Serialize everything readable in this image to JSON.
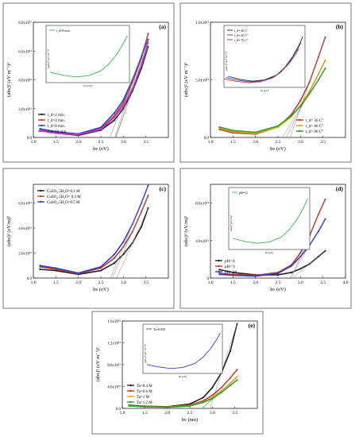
{
  "figure_panels": [
    {
      "id": "a",
      "panel_label": "(a)",
      "ylabel": "(αhν)² (eV m⁻¹)²",
      "xlabel": "hν (eV)",
      "xlim": [
        1.0,
        4.0
      ],
      "ylim": [
        0,
        8
      ],
      "x_ticks": [
        "1.0",
        "1.5",
        "2.0",
        "2.5",
        "3.0",
        "3.5"
      ],
      "y_ticks": [
        {
          "v": 8,
          "label": "8.0x10¹²"
        },
        {
          "v": 6,
          "label": "6.0x10¹²"
        },
        {
          "v": 4,
          "label": "4.0x10¹²"
        },
        {
          "v": 2,
          "label": "2.0x10¹²"
        },
        {
          "v": 0,
          "label": "0.0"
        }
      ],
      "legend": {
        "position": "bottom-left",
        "entries": [
          "t_d=2 min.",
          "t_d=4 min.",
          "t_d=8 min.",
          "t_d=10 min."
        ]
      },
      "inset": {
        "legend": "t_d=8 min.",
        "ylabel": "(αhν)² (eV m⁻¹)²",
        "xlabel": "hν (eV)"
      }
    },
    {
      "id": "b",
      "panel_label": "(b)",
      "ylabel": "(αhν)² (eV m⁻¹)²",
      "xlabel": "hν (eV)",
      "xlim": [
        1.0,
        4.0
      ],
      "ylim": [
        0,
        10
      ],
      "x_ticks": [
        "1.0",
        "1.5",
        "2.0",
        "2.5",
        "3.0",
        "3.5"
      ],
      "y_ticks": [
        {
          "v": 10,
          "label": "1.0x10¹³"
        },
        {
          "v": 5,
          "label": "5.0x10¹²"
        },
        {
          "v": 0,
          "label": "0.0"
        }
      ],
      "legend": {
        "position": "bottom-right",
        "entries": [
          "t_d= 50 C°",
          "t_d= 80 C°",
          "t_d= 90 C°"
        ]
      },
      "inset": {
        "legend_entries": [
          "t_d= 40 C°",
          "t_d= 60 C°",
          "t_d= 70 C°"
        ],
        "ylabel": "(αhν)² (eV m⁻¹)²",
        "xlabel": "hν (eV)"
      }
    },
    {
      "id": "c",
      "panel_label": "(c)",
      "ylabel": "(αhν)² (eV/m)²",
      "xlabel": "hν (eV)",
      "xlim": [
        1.0,
        4.0
      ],
      "ylim": [
        0,
        7.5
      ],
      "x_ticks": [
        "1.0",
        "1.5",
        "2.0",
        "2.5",
        "3.0",
        "3.5"
      ],
      "y_ticks": [
        {
          "v": 6,
          "label": "6.0x10¹²"
        },
        {
          "v": 4,
          "label": "4.0x10¹²"
        },
        {
          "v": 2,
          "label": "2.0x10¹²"
        },
        {
          "v": 0,
          "label": "0.0"
        }
      ],
      "legend": {
        "position": "top-left",
        "entries": [
          "CuSO₄.5H₂O=0.1 M",
          "CuSO₄.5H₂O= 0.3 M",
          "CuSO₄.5H₂O=0.5 M"
        ]
      }
    },
    {
      "id": "d",
      "panel_label": "(d)",
      "ylabel": "(αhν)² (eV/m)²",
      "xlabel": "hν (eV)",
      "xlim": [
        1.0,
        4.0
      ],
      "ylim": [
        0,
        10
      ],
      "x_ticks": [
        "1.0",
        "1.5",
        "2.0",
        "2.5",
        "3.0",
        "3.5",
        "4.0"
      ],
      "y_ticks": [
        {
          "v": 8,
          "label": "8.0x10¹²"
        },
        {
          "v": 4,
          "label": "4.0x10¹²"
        },
        {
          "v": 0,
          "label": "0"
        }
      ],
      "legend": {
        "position": "bottom-left",
        "entries": [
          "pH= 8",
          "pH= 9",
          "pH= 10"
        ]
      },
      "inset": {
        "legend": "pH=11",
        "ylabel": "(αhν)² (eV/m)²",
        "xlabel": "hν (eV)"
      }
    },
    {
      "id": "e",
      "panel_label": "(e)",
      "ylabel": "(αhν)² (eV m⁻¹)²",
      "xlabel": "hν (nm)",
      "xlim": [
        1.0,
        4.0
      ],
      "ylim": [
        0,
        16
      ],
      "x_ticks": [
        "1.0",
        "1.5",
        "2.0",
        "2.5",
        "3.0",
        "3.5"
      ],
      "y_ticks": [
        {
          "v": 16,
          "label": "1.6x10¹³"
        },
        {
          "v": 12,
          "label": "1.2x10¹³"
        },
        {
          "v": 8,
          "label": "8.0x10¹²"
        },
        {
          "v": 4,
          "label": "4.0x10¹²"
        },
        {
          "v": 0,
          "label": "0.0"
        }
      ],
      "legend": {
        "position": "bottom-left",
        "entries": [
          "Ta=0.4 M",
          "Ta=0.6 M",
          "Ta=1 M",
          "Ta=1.2 M"
        ]
      },
      "inset": {
        "legend": "Ta=0.8M",
        "ylabel": "(αhν)² (eV m⁻¹)²",
        "xlabel": "hν (eV)"
      }
    }
  ],
  "chart_data": [
    {
      "type": "line",
      "panel": "a",
      "xlabel": "hν (eV)",
      "ylabel": "(αhν)² (eV m⁻¹)²",
      "ylim": [
        0,
        8
      ],
      "unit_note": "values ×10¹²",
      "series": [
        {
          "name": "t_d=2 min.",
          "color": "#222222",
          "points": [
            [
              1.15,
              0.5
            ],
            [
              1.5,
              0.3
            ],
            [
              2.0,
              0.15
            ],
            [
              2.5,
              0.5
            ],
            [
              2.8,
              1.2
            ],
            [
              3.0,
              2.0
            ],
            [
              3.2,
              3.2
            ],
            [
              3.4,
              4.8
            ],
            [
              3.55,
              6.3
            ]
          ]
        },
        {
          "name": "t_d=4 min.",
          "color": "#c0392b",
          "points": [
            [
              1.15,
              0.5
            ],
            [
              1.5,
              0.35
            ],
            [
              2.0,
              0.2
            ],
            [
              2.5,
              0.6
            ],
            [
              2.8,
              1.5
            ],
            [
              3.0,
              2.4
            ],
            [
              3.2,
              3.8
            ],
            [
              3.4,
              5.5
            ],
            [
              3.55,
              7.2
            ]
          ]
        },
        {
          "name": "t_d=8 min.",
          "color": "#2e3fc7",
          "points": [
            [
              1.15,
              0.6
            ],
            [
              1.5,
              0.4
            ],
            [
              2.0,
              0.25
            ],
            [
              2.5,
              0.7
            ],
            [
              2.8,
              1.7
            ],
            [
              3.0,
              2.6
            ],
            [
              3.2,
              4.0
            ],
            [
              3.4,
              5.6
            ],
            [
              3.55,
              6.8
            ]
          ]
        },
        {
          "name": "t_d=10 min.",
          "color": "#cc33cc",
          "points": [
            [
              1.15,
              0.45
            ],
            [
              1.5,
              0.3
            ],
            [
              2.0,
              0.2
            ],
            [
              2.5,
              0.55
            ],
            [
              2.8,
              1.4
            ],
            [
              3.0,
              2.2
            ],
            [
              3.2,
              3.4
            ],
            [
              3.4,
              5.0
            ],
            [
              3.55,
              6.6
            ]
          ]
        }
      ]
    },
    {
      "type": "line",
      "panel": "b",
      "xlabel": "hν (eV)",
      "ylabel": "(αhν)² (eV m⁻¹)²",
      "ylim": [
        0,
        10
      ],
      "unit_note": "values ×10¹²",
      "series": [
        {
          "name": "t_d= 50 C°",
          "color": "#c0392b",
          "points": [
            [
              1.2,
              0.7
            ],
            [
              1.5,
              0.4
            ],
            [
              2.0,
              0.3
            ],
            [
              2.5,
              0.9
            ],
            [
              2.8,
              2.0
            ],
            [
              3.0,
              3.2
            ],
            [
              3.2,
              4.8
            ],
            [
              3.4,
              7.0
            ],
            [
              3.55,
              8.7
            ]
          ]
        },
        {
          "name": "t_d= 80 C°",
          "color": "#d4b106",
          "points": [
            [
              1.2,
              0.8
            ],
            [
              1.5,
              0.5
            ],
            [
              2.0,
              0.35
            ],
            [
              2.5,
              0.9
            ],
            [
              2.8,
              1.8
            ],
            [
              3.0,
              2.8
            ],
            [
              3.2,
              4.0
            ],
            [
              3.4,
              5.5
            ],
            [
              3.55,
              6.7
            ]
          ]
        },
        {
          "name": "t_d= 90 C°",
          "color": "#2ca02c",
          "points": [
            [
              1.2,
              0.9
            ],
            [
              1.5,
              0.6
            ],
            [
              2.0,
              0.45
            ],
            [
              2.5,
              1.0
            ],
            [
              2.8,
              1.9
            ],
            [
              3.0,
              2.7
            ],
            [
              3.2,
              3.8
            ],
            [
              3.4,
              5.0
            ],
            [
              3.55,
              6.0
            ]
          ]
        }
      ]
    },
    {
      "type": "line",
      "panel": "c",
      "xlabel": "hν (eV)",
      "ylabel": "(αhν)² (eV/m)²",
      "ylim": [
        0,
        7.5
      ],
      "unit_note": "values ×10¹²",
      "series": [
        {
          "name": "CuSO₄.5H₂O=0.1 M",
          "color": "#222222",
          "points": [
            [
              1.15,
              0.7
            ],
            [
              1.5,
              0.6
            ],
            [
              2.0,
              0.3
            ],
            [
              2.5,
              0.6
            ],
            [
              2.8,
              1.2
            ],
            [
              3.0,
              1.9
            ],
            [
              3.2,
              2.8
            ],
            [
              3.4,
              4.1
            ],
            [
              3.55,
              5.6
            ]
          ]
        },
        {
          "name": "CuSO₄.5H₂O= 0.3 M",
          "color": "#c0392b",
          "points": [
            [
              1.15,
              0.9
            ],
            [
              1.5,
              0.7
            ],
            [
              2.0,
              0.35
            ],
            [
              2.5,
              0.8
            ],
            [
              2.8,
              1.6
            ],
            [
              3.0,
              2.5
            ],
            [
              3.2,
              3.7
            ],
            [
              3.4,
              5.3
            ],
            [
              3.55,
              6.6
            ]
          ]
        },
        {
          "name": "CuSO₄.5H₂O=0.5 M",
          "color": "#2e3fc7",
          "points": [
            [
              1.15,
              1.0
            ],
            [
              1.5,
              0.8
            ],
            [
              2.0,
              0.4
            ],
            [
              2.5,
              0.9
            ],
            [
              2.8,
              1.9
            ],
            [
              3.0,
              2.9
            ],
            [
              3.2,
              4.3
            ],
            [
              3.4,
              6.0
            ],
            [
              3.55,
              7.4
            ]
          ]
        }
      ]
    },
    {
      "type": "line",
      "panel": "d",
      "xlabel": "hν (eV)",
      "ylabel": "(αhν)² (eV/m)²",
      "ylim": [
        0,
        10
      ],
      "unit_note": "values ×10¹²",
      "series": [
        {
          "name": "pH= 8",
          "color": "#222222",
          "points": [
            [
              1.2,
              0.9
            ],
            [
              1.5,
              0.6
            ],
            [
              2.0,
              0.35
            ],
            [
              2.5,
              0.35
            ],
            [
              2.8,
              0.6
            ],
            [
              3.0,
              1.0
            ],
            [
              3.2,
              1.5
            ],
            [
              3.4,
              2.3
            ],
            [
              3.55,
              2.9
            ]
          ]
        },
        {
          "name": "pH= 9",
          "color": "#c0392b",
          "points": [
            [
              1.2,
              0.5
            ],
            [
              1.5,
              0.4
            ],
            [
              2.0,
              0.3
            ],
            [
              2.5,
              0.6
            ],
            [
              2.8,
              1.4
            ],
            [
              3.0,
              2.7
            ],
            [
              3.2,
              4.5
            ],
            [
              3.4,
              6.8
            ],
            [
              3.55,
              8.4
            ]
          ]
        },
        {
          "name": "pH= 10",
          "color": "#2e3fc7",
          "points": [
            [
              1.2,
              0.4
            ],
            [
              1.5,
              0.3
            ],
            [
              2.0,
              0.2
            ],
            [
              2.5,
              0.5
            ],
            [
              2.8,
              1.3
            ],
            [
              3.0,
              2.3
            ],
            [
              3.2,
              3.5
            ],
            [
              3.4,
              5.0
            ],
            [
              3.55,
              6.3
            ]
          ]
        }
      ]
    },
    {
      "type": "line",
      "panel": "e",
      "xlabel": "hν (nm)",
      "ylabel": "(αhν)² (eV m⁻¹)²",
      "ylim": [
        0,
        16
      ],
      "unit_note": "values ×10¹²",
      "series": [
        {
          "name": "Ta=0.4 M",
          "color": "#222222",
          "points": [
            [
              1.15,
              0.6
            ],
            [
              1.5,
              0.4
            ],
            [
              2.0,
              0.3
            ],
            [
              2.5,
              0.8
            ],
            [
              2.8,
              2.0
            ],
            [
              3.0,
              3.8
            ],
            [
              3.2,
              6.5
            ],
            [
              3.4,
              10.5
            ],
            [
              3.55,
              15.5
            ]
          ]
        },
        {
          "name": "Ta=0.6 M",
          "color": "#c0392b",
          "points": [
            [
              1.15,
              0.5
            ],
            [
              1.5,
              0.35
            ],
            [
              2.0,
              0.25
            ],
            [
              2.5,
              0.6
            ],
            [
              2.8,
              1.4
            ],
            [
              3.0,
              2.4
            ],
            [
              3.2,
              3.8
            ],
            [
              3.4,
              5.6
            ],
            [
              3.55,
              7.1
            ]
          ]
        },
        {
          "name": "Ta=1 M",
          "color": "#d4b106",
          "points": [
            [
              1.15,
              0.5
            ],
            [
              1.5,
              0.3
            ],
            [
              2.0,
              0.25
            ],
            [
              2.5,
              0.5
            ],
            [
              2.8,
              1.2
            ],
            [
              3.0,
              2.0
            ],
            [
              3.2,
              3.2
            ],
            [
              3.4,
              4.6
            ],
            [
              3.55,
              5.8
            ]
          ]
        },
        {
          "name": "Ta=1.2 M",
          "color": "#2ca02c",
          "points": [
            [
              1.15,
              0.45
            ],
            [
              1.5,
              0.3
            ],
            [
              2.0,
              0.2
            ],
            [
              2.5,
              0.45
            ],
            [
              2.8,
              1.1
            ],
            [
              3.0,
              1.8
            ],
            [
              3.2,
              2.9
            ],
            [
              3.4,
              4.2
            ],
            [
              3.55,
              5.2
            ]
          ]
        }
      ]
    }
  ]
}
